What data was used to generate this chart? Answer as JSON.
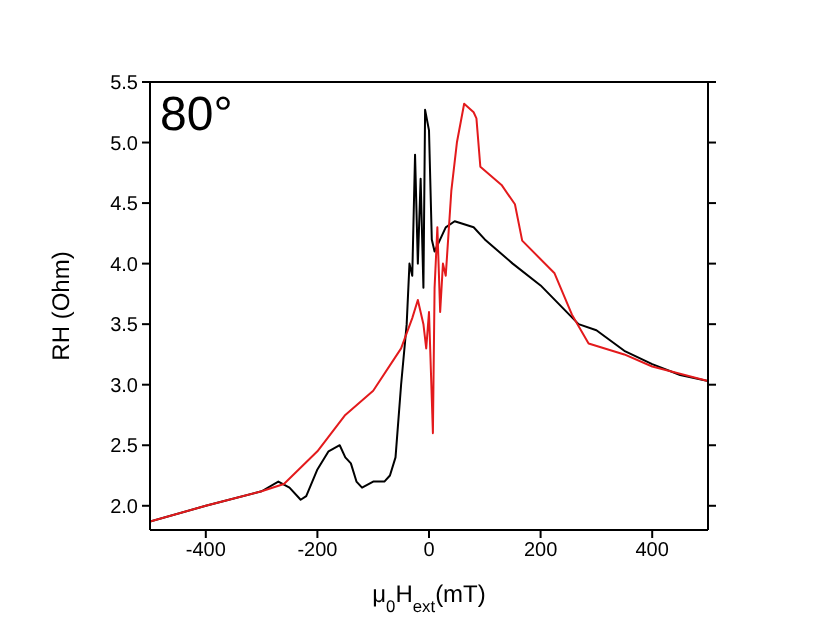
{
  "chart_data": {
    "type": "line",
    "xlabel": "μ$_{0}$H$_{ext}$(mT)",
    "ylabel": "RH (Ohm)",
    "annotations": [
      "80°"
    ],
    "xlim": [
      -500,
      500
    ],
    "xticks": [
      -400,
      -200,
      0,
      200,
      400
    ],
    "ylim": [
      1.8,
      5.5
    ],
    "yticks": [
      {
        "value": 2,
        "label": "2.0"
      },
      {
        "value": 2.5,
        "label": "2.5"
      },
      {
        "value": 3,
        "label": "3.0"
      },
      {
        "value": 3.5,
        "label": "3.5"
      },
      {
        "value": 4,
        "label": "4.0"
      },
      {
        "value": 4.5,
        "label": "4.5"
      },
      {
        "value": 5,
        "label": "5.0"
      },
      {
        "value": 5.5,
        "label": "5.5"
      }
    ],
    "marker": "none",
    "line_style": "solid",
    "series": [
      {
        "color": "#000000",
        "x": [
          -500,
          -400,
          -300,
          -270,
          -250,
          -230,
          -220,
          -200,
          -180,
          -160,
          -150,
          -140,
          -130,
          -120,
          -100,
          -80,
          -70,
          -60,
          -50,
          -40,
          -35,
          -30,
          -25,
          -20,
          -15,
          -10,
          -7,
          0,
          5,
          10,
          20,
          30,
          46,
          80,
          100,
          150,
          200,
          268,
          300,
          350,
          400,
          450,
          500
        ],
        "values": [
          1.87,
          2.0,
          2.12,
          2.2,
          2.15,
          2.05,
          2.08,
          2.3,
          2.45,
          2.5,
          2.4,
          2.35,
          2.2,
          2.15,
          2.2,
          2.2,
          2.25,
          2.4,
          3.0,
          3.5,
          4.0,
          3.9,
          4.9,
          4.0,
          4.7,
          3.8,
          5.27,
          5.1,
          4.2,
          4.1,
          4.2,
          4.3,
          4.35,
          4.3,
          4.2,
          4.0,
          3.82,
          3.5,
          3.45,
          3.28,
          3.17,
          3.08,
          3.03
        ]
      },
      {
        "color": "#e31a1c",
        "x": [
          -500,
          -400,
          -300,
          -260,
          -200,
          -150,
          -100,
          -50,
          -30,
          -20,
          -10,
          -5,
          0,
          7,
          10,
          15,
          20,
          25,
          30,
          40,
          50,
          63,
          80,
          85,
          92,
          130,
          154,
          167,
          225,
          256,
          286,
          350,
          400,
          500
        ],
        "values": [
          1.87,
          2.0,
          2.12,
          2.18,
          2.45,
          2.75,
          2.95,
          3.3,
          3.55,
          3.7,
          3.5,
          3.3,
          3.6,
          2.6,
          3.8,
          4.3,
          3.6,
          4.0,
          3.9,
          4.6,
          5.0,
          5.32,
          5.25,
          5.2,
          4.8,
          4.65,
          4.49,
          4.19,
          3.92,
          3.58,
          3.34,
          3.25,
          3.15,
          3.03
        ]
      }
    ]
  }
}
